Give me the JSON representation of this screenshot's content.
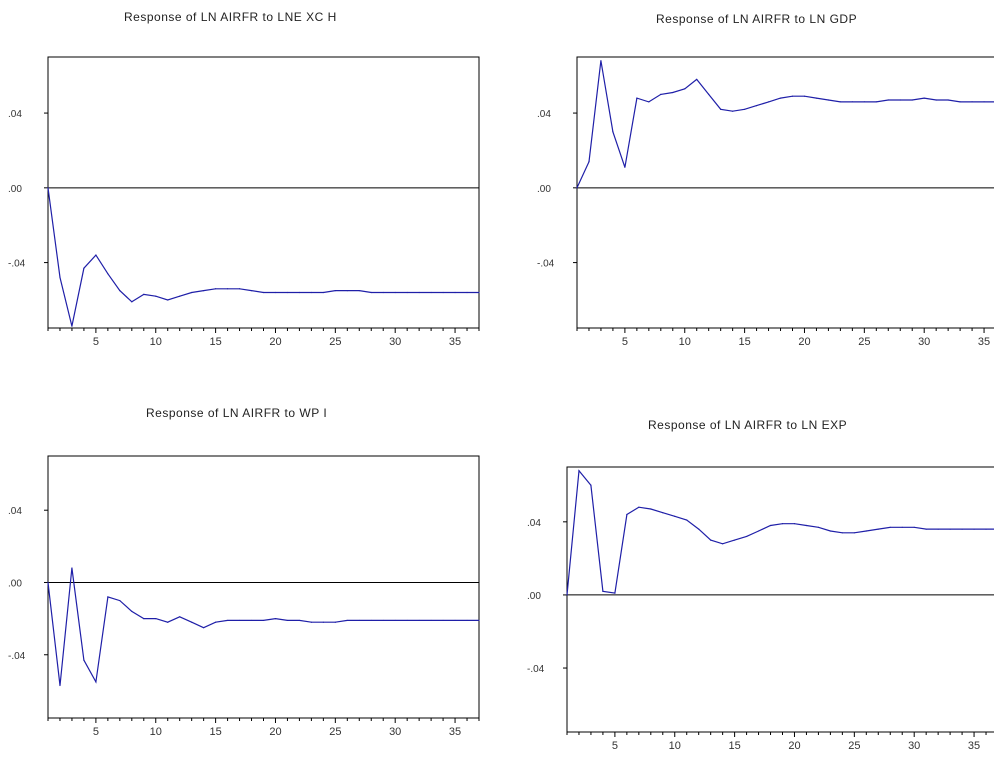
{
  "colors": {
    "line": "#1f1fa8",
    "axis": "#000000",
    "frame": "#000000"
  },
  "chart_data": [
    {
      "type": "line",
      "title": "Response of LN AIRFR to LNE XC H",
      "xlabel": "",
      "ylabel": "",
      "xlim": [
        1,
        37
      ],
      "ylim": [
        -0.075,
        0.07
      ],
      "xticks": [
        5,
        10,
        15,
        20,
        25,
        30,
        35
      ],
      "yticks": [
        0.04,
        0.0,
        -0.04
      ],
      "ytick_labels": [
        ".04",
        ".00",
        "-.04"
      ],
      "x": [
        1,
        2,
        3,
        4,
        5,
        6,
        7,
        8,
        9,
        10,
        11,
        12,
        13,
        14,
        15,
        16,
        17,
        18,
        19,
        20,
        21,
        22,
        23,
        24,
        25,
        26,
        27,
        28,
        29,
        30,
        31,
        32,
        33,
        34,
        35,
        36,
        37
      ],
      "values": [
        0.0,
        -0.048,
        -0.074,
        -0.043,
        -0.036,
        -0.046,
        -0.055,
        -0.061,
        -0.057,
        -0.058,
        -0.06,
        -0.058,
        -0.056,
        -0.055,
        -0.054,
        -0.054,
        -0.054,
        -0.055,
        -0.056,
        -0.056,
        -0.056,
        -0.056,
        -0.056,
        -0.056,
        -0.055,
        -0.055,
        -0.055,
        -0.056,
        -0.056,
        -0.056,
        -0.056,
        -0.056,
        -0.056,
        -0.056,
        -0.056,
        -0.056,
        -0.056
      ]
    },
    {
      "type": "line",
      "title": "Response of LN AIRFR to LN GDP",
      "xlabel": "",
      "ylabel": "",
      "xlim": [
        1,
        37
      ],
      "ylim": [
        -0.075,
        0.07
      ],
      "xticks": [
        5,
        10,
        15,
        20,
        25,
        30,
        35
      ],
      "yticks": [
        0.04,
        0.0,
        -0.04
      ],
      "ytick_labels": [
        ".04",
        ".00",
        "-.04"
      ],
      "x": [
        1,
        2,
        3,
        4,
        5,
        6,
        7,
        8,
        9,
        10,
        11,
        12,
        13,
        14,
        15,
        16,
        17,
        18,
        19,
        20,
        21,
        22,
        23,
        24,
        25,
        26,
        27,
        28,
        29,
        30,
        31,
        32,
        33,
        34,
        35,
        36,
        37
      ],
      "values": [
        0.0,
        0.014,
        0.068,
        0.03,
        0.011,
        0.048,
        0.046,
        0.05,
        0.051,
        0.053,
        0.058,
        0.05,
        0.042,
        0.041,
        0.042,
        0.044,
        0.046,
        0.048,
        0.049,
        0.049,
        0.048,
        0.047,
        0.046,
        0.046,
        0.046,
        0.046,
        0.047,
        0.047,
        0.047,
        0.048,
        0.047,
        0.047,
        0.046,
        0.046,
        0.046,
        0.046,
        0.046
      ]
    },
    {
      "type": "line",
      "title": "Response of LN AIRFR to WP I",
      "xlabel": "",
      "ylabel": "",
      "xlim": [
        1,
        37
      ],
      "ylim": [
        -0.075,
        0.07
      ],
      "xticks": [
        5,
        10,
        15,
        20,
        25,
        30,
        35
      ],
      "yticks": [
        0.04,
        0.0,
        -0.04
      ],
      "ytick_labels": [
        ".04",
        ".00",
        "-.04"
      ],
      "x": [
        1,
        2,
        3,
        4,
        5,
        6,
        7,
        8,
        9,
        10,
        11,
        12,
        13,
        14,
        15,
        16,
        17,
        18,
        19,
        20,
        21,
        22,
        23,
        24,
        25,
        26,
        27,
        28,
        29,
        30,
        31,
        32,
        33,
        34,
        35,
        36,
        37
      ],
      "values": [
        0.0,
        -0.057,
        0.008,
        -0.043,
        -0.055,
        -0.008,
        -0.01,
        -0.016,
        -0.02,
        -0.02,
        -0.022,
        -0.019,
        -0.022,
        -0.025,
        -0.022,
        -0.021,
        -0.021,
        -0.021,
        -0.021,
        -0.02,
        -0.021,
        -0.021,
        -0.022,
        -0.022,
        -0.022,
        -0.021,
        -0.021,
        -0.021,
        -0.021,
        -0.021,
        -0.021,
        -0.021,
        -0.021,
        -0.021,
        -0.021,
        -0.021,
        -0.021
      ]
    },
    {
      "type": "line",
      "title": "Response of LN AIRFR to LN EXP",
      "xlabel": "",
      "ylabel": "",
      "xlim": [
        1,
        37
      ],
      "ylim": [
        -0.075,
        0.07
      ],
      "xticks": [
        5,
        10,
        15,
        20,
        25,
        30,
        35
      ],
      "yticks": [
        0.04,
        0.0,
        -0.04
      ],
      "ytick_labels": [
        ".04",
        ".00",
        "-.04"
      ],
      "x": [
        1,
        2,
        3,
        4,
        5,
        6,
        7,
        8,
        9,
        10,
        11,
        12,
        13,
        14,
        15,
        16,
        17,
        18,
        19,
        20,
        21,
        22,
        23,
        24,
        25,
        26,
        27,
        28,
        29,
        30,
        31,
        32,
        33,
        34,
        35,
        36,
        37
      ],
      "values": [
        0.0,
        0.068,
        0.06,
        0.002,
        0.001,
        0.044,
        0.048,
        0.047,
        0.045,
        0.043,
        0.041,
        0.036,
        0.03,
        0.028,
        0.03,
        0.032,
        0.035,
        0.038,
        0.039,
        0.039,
        0.038,
        0.037,
        0.035,
        0.034,
        0.034,
        0.035,
        0.036,
        0.037,
        0.037,
        0.037,
        0.036,
        0.036,
        0.036,
        0.036,
        0.036,
        0.036,
        0.036
      ]
    }
  ]
}
